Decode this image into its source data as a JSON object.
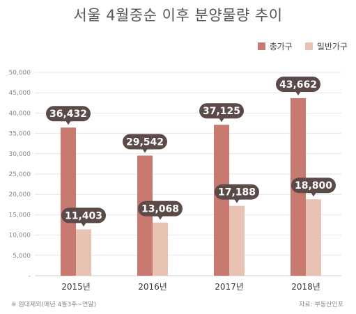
{
  "chart_data": {
    "type": "bar",
    "title": "서울 4월중순 이후 분양물량 추이",
    "categories": [
      "2015년",
      "2016년",
      "2017년",
      "2018년"
    ],
    "series": [
      {
        "name": "총가구",
        "values": [
          36432,
          29542,
          37125,
          43662
        ],
        "labels": [
          "36,432",
          "29,542",
          "37,125",
          "43,662"
        ],
        "color": "#c97a70"
      },
      {
        "name": "일반가구",
        "values": [
          11403,
          13068,
          17188,
          18800
        ],
        "labels": [
          "11,403",
          "13,068",
          "17,188",
          "18,800"
        ],
        "color": "#e8c3b3"
      }
    ],
    "ylim": [
      0,
      50000
    ],
    "yticks": [
      {
        "value": 50000,
        "label": "50,000"
      },
      {
        "value": 45000,
        "label": "45,000"
      },
      {
        "value": 40000,
        "label": "40,000"
      },
      {
        "value": 35000,
        "label": "35,000"
      },
      {
        "value": 30000,
        "label": "30,000"
      },
      {
        "value": 25000,
        "label": "25,000"
      },
      {
        "value": 20000,
        "label": "20,000"
      },
      {
        "value": 15000,
        "label": "15,000"
      },
      {
        "value": 10000,
        "label": "10,000"
      },
      {
        "value": 5000,
        "label": "5,000"
      },
      {
        "value": 0,
        "label": "-"
      }
    ],
    "grid": true,
    "legend_position": "top-right"
  },
  "footnote": "※ 임대제외(매년 4월3주~연말)",
  "source": "자료: 부동산인포",
  "colors": {
    "bubble": "#5b4a47",
    "grid": "#e6e6e6",
    "axis": "#cfcfcf"
  }
}
